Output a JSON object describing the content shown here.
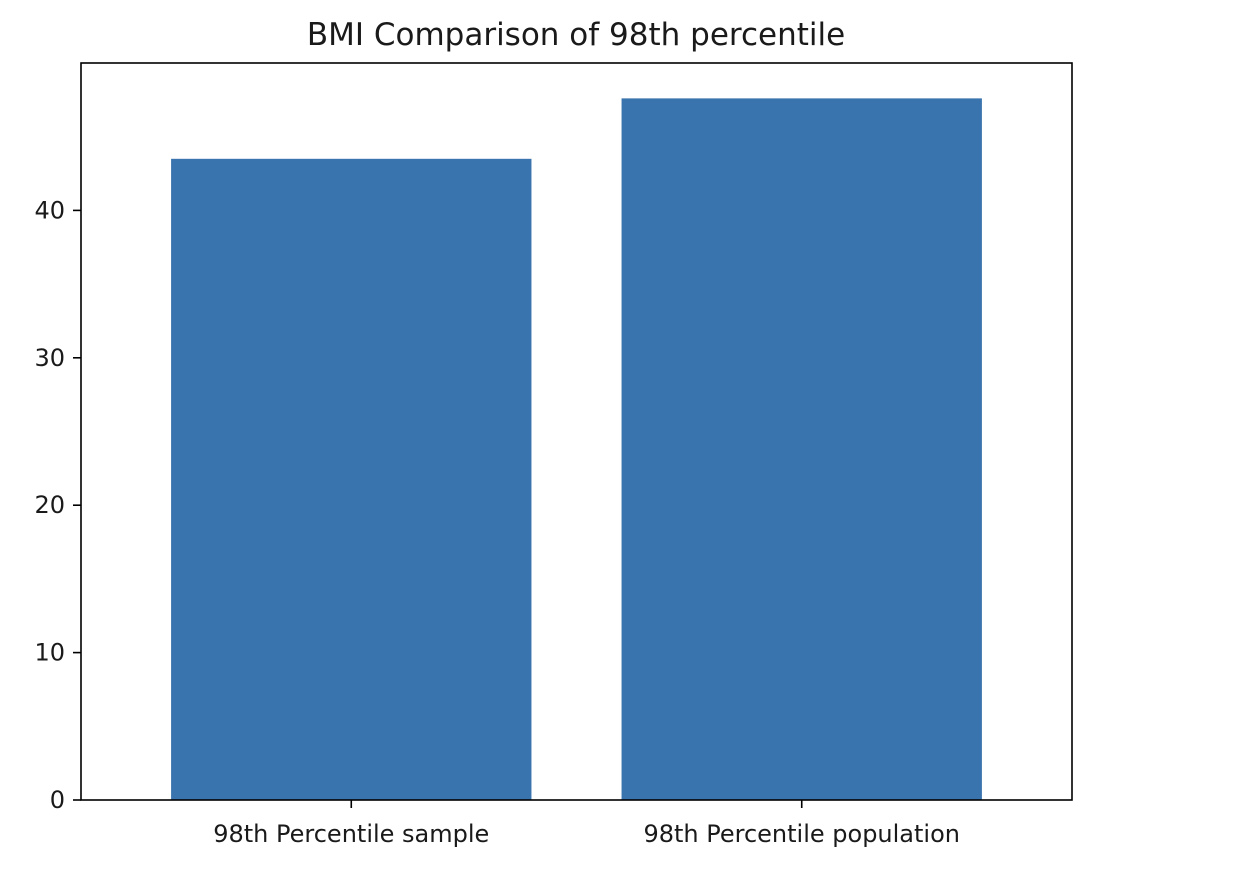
{
  "chart_data": {
    "type": "bar",
    "title": "BMI Comparison of 98th percentile",
    "xlabel": "",
    "ylabel": "",
    "categories": [
      "98th Percentile sample",
      "98th Percentile population"
    ],
    "values": [
      43.5,
      47.6
    ],
    "ylim": [
      0,
      50
    ],
    "yticks": [
      0,
      10,
      20,
      30,
      40
    ],
    "grid": false,
    "legend": "none",
    "bar_color": "#3a74ae"
  }
}
